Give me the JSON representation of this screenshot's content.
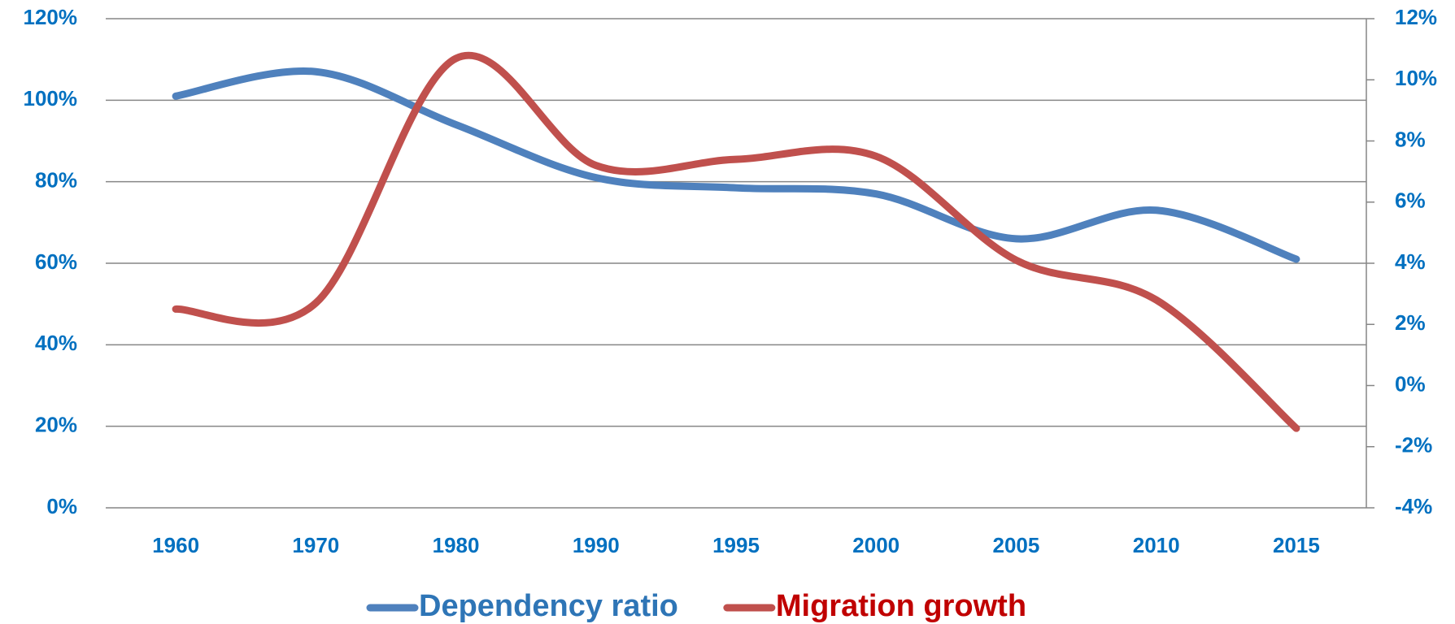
{
  "chart_data": {
    "type": "line",
    "categories": [
      "1960",
      "1970",
      "1980",
      "1990",
      "1995",
      "2000",
      "2005",
      "2010",
      "2015"
    ],
    "series": [
      {
        "name": "Dependency ratio",
        "color": "#4f81bd",
        "values": [
          101,
          107,
          94,
          81,
          78.5,
          77,
          66,
          73,
          61
        ]
      },
      {
        "name": "Migration growth",
        "color": "#c0504d",
        "axis": "y2",
        "values": [
          2.5,
          2.7,
          10.7,
          7.2,
          7.4,
          7.5,
          4.1,
          2.8,
          -1.4
        ]
      }
    ],
    "ylim": [
      0,
      120
    ],
    "yticks": [
      {
        "value": 0,
        "label": "0%"
      },
      {
        "value": 20,
        "label": "20%"
      },
      {
        "value": 40,
        "label": "40%"
      },
      {
        "value": 60,
        "label": "60%"
      },
      {
        "value": 80,
        "label": "80%"
      },
      {
        "value": 100,
        "label": "100%"
      },
      {
        "value": 120,
        "label": "120%"
      }
    ],
    "y2lim": [
      -4,
      12
    ],
    "y2ticks": [
      {
        "value": -4,
        "label": "-4%"
      },
      {
        "value": -2,
        "label": "-2%"
      },
      {
        "value": 0,
        "label": "0%"
      },
      {
        "value": 2,
        "label": "2%"
      },
      {
        "value": 4,
        "label": "4%"
      },
      {
        "value": 6,
        "label": "6%"
      },
      {
        "value": 8,
        "label": "8%"
      },
      {
        "value": 10,
        "label": "10%"
      },
      {
        "value": 12,
        "label": "12%"
      }
    ],
    "grid": true,
    "legend": "bottom"
  }
}
